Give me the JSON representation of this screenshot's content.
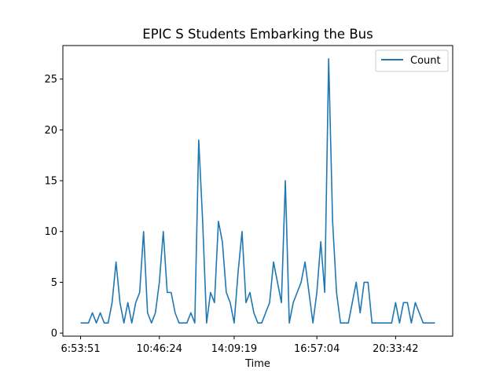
{
  "chart_data": {
    "type": "line",
    "title": "EPIC S Students Embarking the Bus",
    "xlabel": "Time",
    "ylabel": "",
    "x_tick_labels": [
      "6:53:51",
      "10:46:24",
      "14:09:19",
      "16:57:04",
      "20:33:42"
    ],
    "x_tick_indices": [
      0,
      20,
      39,
      60,
      80
    ],
    "x_range_index": [
      -4.5,
      94.5
    ],
    "y_ticks": [
      0,
      5,
      10,
      15,
      20,
      25
    ],
    "ylim": [
      -0.3,
      28.3
    ],
    "grid": false,
    "legend_position": "top-right",
    "series": [
      {
        "name": "Count",
        "color": "#1f77b4",
        "values": [
          1,
          1,
          1,
          2,
          1,
          2,
          1,
          1,
          3,
          7,
          3,
          1,
          3,
          1,
          3,
          4,
          10,
          2,
          1,
          2,
          5,
          10,
          4,
          4,
          2,
          1,
          1,
          1,
          2,
          1,
          19,
          11,
          1,
          4,
          3,
          11,
          9,
          4,
          3,
          1,
          6,
          10,
          3,
          4,
          2,
          1,
          1,
          2,
          3,
          7,
          5,
          3,
          15,
          1,
          3,
          4,
          5,
          7,
          4,
          1,
          4,
          9,
          4,
          27,
          11,
          4,
          1,
          1,
          1,
          3,
          5,
          2,
          5,
          5,
          1,
          1,
          1,
          1,
          1,
          1,
          3,
          1,
          3,
          3,
          1,
          3,
          2,
          1,
          1,
          1,
          1
        ]
      }
    ]
  }
}
